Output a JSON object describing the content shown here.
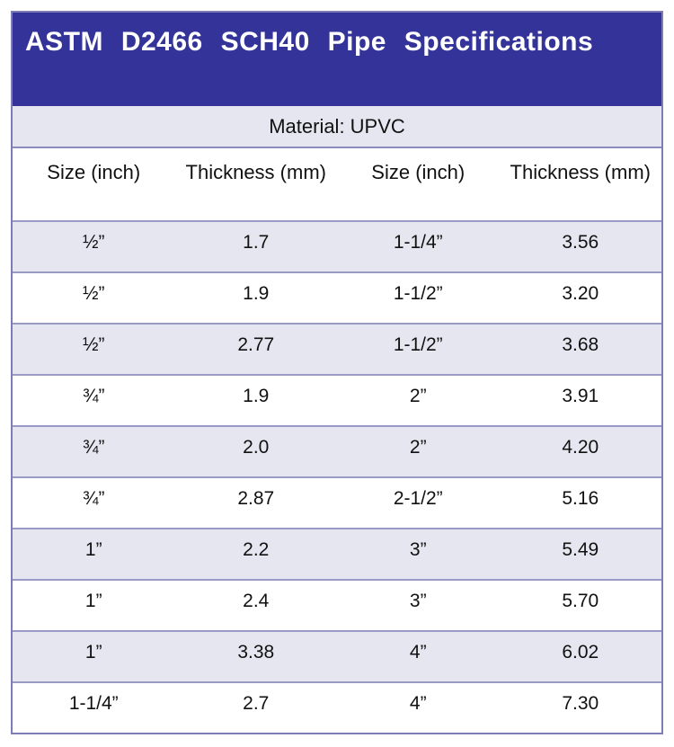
{
  "table": {
    "title": "ASTM D2466 SCH40 Pipe Specifications",
    "material_label": "Material: UPVC",
    "columns": [
      "Size (inch)",
      "Thickness (mm)",
      "Size (inch)",
      "Thickness (mm)"
    ],
    "rows": [
      [
        "½”",
        "1.7",
        "1-1/4”",
        "3.56"
      ],
      [
        "½”",
        "1.9",
        "1-1/2”",
        "3.20"
      ],
      [
        "½”",
        "2.77",
        "1-1/2”",
        "3.68"
      ],
      [
        "¾”",
        "1.9",
        "2”",
        "3.91"
      ],
      [
        "¾”",
        "2.0",
        "2”",
        "4.20"
      ],
      [
        "¾”",
        "2.87",
        "2-1/2”",
        "5.16"
      ],
      [
        "1”",
        "2.2",
        "3”",
        "5.49"
      ],
      [
        "1”",
        "2.4",
        "3”",
        "5.70"
      ],
      [
        "1”",
        "3.38",
        "4”",
        "6.02"
      ],
      [
        "1-1/4”",
        "2.7",
        "4”",
        "7.30"
      ]
    ],
    "colors": {
      "banner_bg": "#333399",
      "banner_text": "#ffffff",
      "band_bg": "#e6e6f1",
      "row_alt_bg": "#e6e6f1",
      "row_bg": "#ffffff",
      "border": "#8c8cbe",
      "text": "#111111"
    }
  },
  "chart_data": {
    "type": "table",
    "title": "ASTM D2466 SCH40 Pipe Specifications",
    "subtitle": "Material: UPVC",
    "columns": [
      "Size (inch)",
      "Thickness (mm)",
      "Size (inch)",
      "Thickness (mm)"
    ],
    "rows": [
      [
        "½”",
        1.7,
        "1-1/4”",
        3.56
      ],
      [
        "½”",
        1.9,
        "1-1/2”",
        3.2
      ],
      [
        "½”",
        2.77,
        "1-1/2”",
        3.68
      ],
      [
        "¾”",
        1.9,
        "2”",
        3.91
      ],
      [
        "¾”",
        2.0,
        "2”",
        4.2
      ],
      [
        "¾”",
        2.87,
        "2-1/2”",
        5.16
      ],
      [
        "1”",
        2.2,
        "3”",
        5.49
      ],
      [
        "1”",
        2.4,
        "3”",
        5.7
      ],
      [
        "1”",
        3.38,
        "4”",
        6.02
      ],
      [
        "1-1/4”",
        2.7,
        "4”",
        7.3
      ]
    ]
  }
}
